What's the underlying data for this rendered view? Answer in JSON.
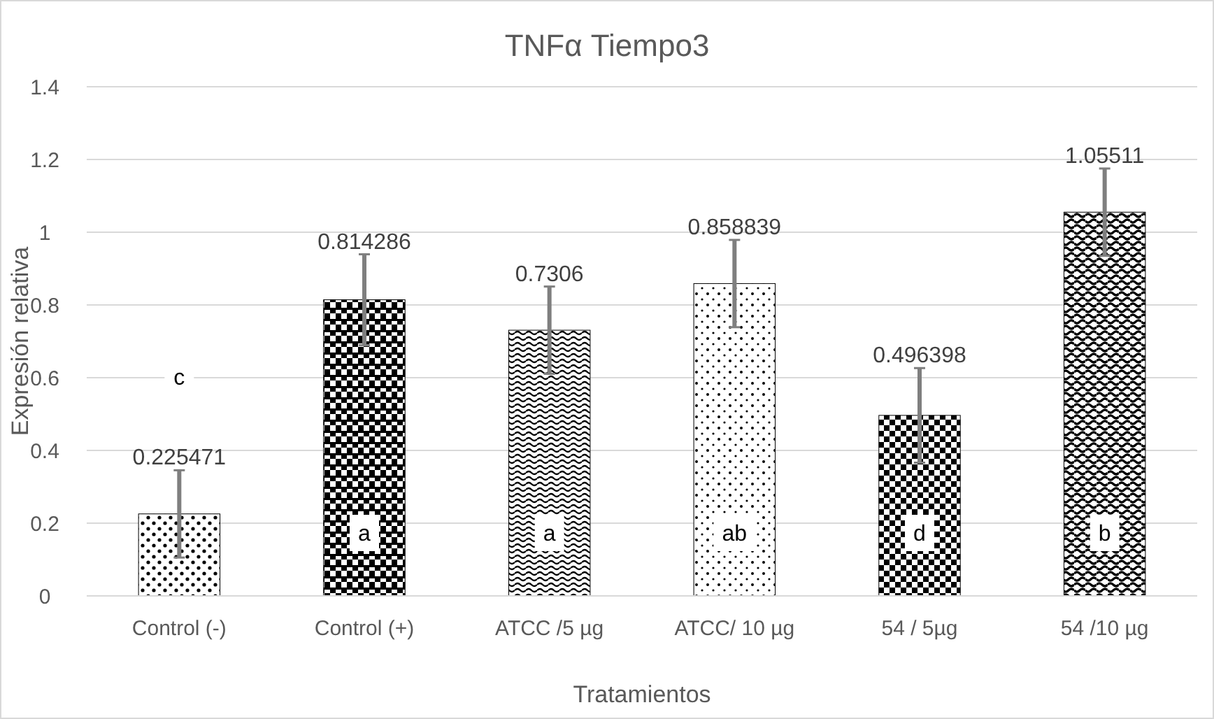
{
  "chart_data": {
    "type": "bar",
    "title": "TNFα Tiempo3",
    "xlabel": "Tratamientos",
    "ylabel": "Expresión relativa",
    "categories": [
      "Control (-)",
      "Control (+)",
      "ATCC /5 µg",
      "ATCC/ 10 µg",
      "54 / 5µg",
      "54 /10 µg"
    ],
    "values": [
      0.225471,
      0.814286,
      0.7306,
      0.858839,
      0.496398,
      1.05511
    ],
    "errors": [
      0.12,
      0.125,
      0.12,
      0.12,
      0.13,
      0.12
    ],
    "colors": [
      "#000000",
      "#000000",
      "#000000",
      "#000000",
      "#000000",
      "#000000"
    ],
    "data_labels": true,
    "ylim": [
      0,
      1.4
    ],
    "yticks": [
      0,
      0.2,
      0.4,
      0.6,
      0.8,
      1,
      1.2,
      1.4
    ],
    "grid": "y",
    "annotations": [
      "c",
      "a",
      "a",
      "ab",
      "d",
      "b"
    ]
  }
}
